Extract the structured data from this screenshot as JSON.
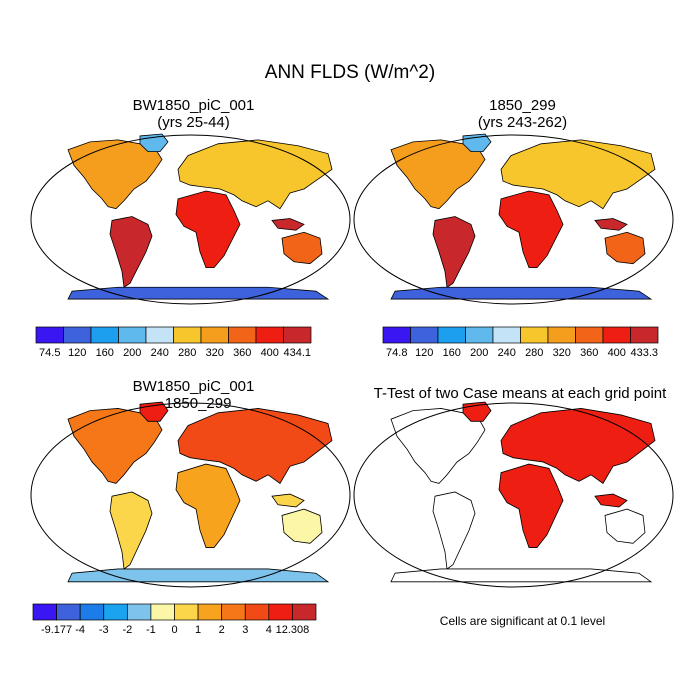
{
  "title": "ANN FLDS (W/m^2)",
  "panels": {
    "top_left": {
      "title_line1": "BW1850_piC_001",
      "title_line2": "(yrs 25-44)"
    },
    "top_right": {
      "title_line1": "1850_299",
      "title_line2": "(yrs 243-262)"
    },
    "bottom_left": {
      "title_line1": "BW1850_piC_001",
      "title_line2": "- 1850_299"
    },
    "bottom_right": {
      "title": "T-Test of two Case means at each grid point",
      "note": "Cells are significant at 0.1 level"
    }
  },
  "colorbars": {
    "top_left": {
      "labels": [
        "74.5",
        "120",
        "160",
        "200",
        "240",
        "280",
        "320",
        "360",
        "400",
        "434.1"
      ],
      "colors": [
        "#3a16f2",
        "#3d62dc",
        "#1d9ff0",
        "#5fb9ec",
        "#c4e3f6",
        "#f7c52c",
        "#f59d1c",
        "#f26417",
        "#ee1f12",
        "#c8282b"
      ]
    },
    "top_right": {
      "labels": [
        "74.8",
        "120",
        "160",
        "200",
        "240",
        "280",
        "320",
        "360",
        "400",
        "433.3"
      ],
      "colors": [
        "#3a16f2",
        "#3d62dc",
        "#1d9ff0",
        "#5fb9ec",
        "#c4e3f6",
        "#f7c52c",
        "#f59d1c",
        "#f26417",
        "#ee1f12",
        "#c8282b"
      ]
    },
    "bottom_left": {
      "labels": [
        "-9.177",
        "-4",
        "-3",
        "-2",
        "-1",
        "0",
        "1",
        "2",
        "3",
        "4",
        "12.308"
      ],
      "colors": [
        "#3a16f2",
        "#3d62dc",
        "#1d7de8",
        "#1aa3ee",
        "#7ec3ec",
        "#fbf7a6",
        "#fbd54a",
        "#f7a31e",
        "#f57718",
        "#f14a16",
        "#ee1f12",
        "#c8282b"
      ]
    }
  }
}
